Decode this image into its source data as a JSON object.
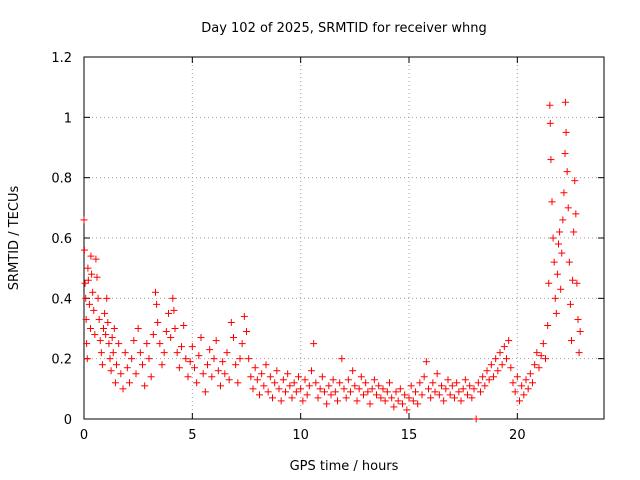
{
  "chart_data": {
    "type": "scatter",
    "title": "Day 102 of 2025, SRMTID for receiver whng",
    "xlabel": "GPS time / hours",
    "ylabel": "SRMTID / TECUs",
    "xlim": [
      0,
      24
    ],
    "ylim": [
      0,
      1.2
    ],
    "grid": true,
    "x_ticks": [
      0,
      5,
      10,
      15,
      20
    ],
    "x_tick_labels": [
      "0",
      "5",
      "10",
      "15",
      "20"
    ],
    "y_ticks": [
      0,
      0.2,
      0.4,
      0.6,
      0.8,
      1.0,
      1.2
    ],
    "y_tick_labels": [
      "0",
      "0.2",
      "0.4",
      "0.6",
      "0.8",
      "1",
      "1.2"
    ],
    "marker": "plus",
    "color": "#ff0000",
    "series": [
      {
        "name": "SRMTID",
        "points": [
          [
            0.0,
            0.66
          ],
          [
            0.02,
            0.56
          ],
          [
            0.05,
            0.45
          ],
          [
            0.08,
            0.4
          ],
          [
            0.1,
            0.33
          ],
          [
            0.12,
            0.25
          ],
          [
            0.15,
            0.2
          ],
          [
            0.18,
            0.5
          ],
          [
            0.2,
            0.46
          ],
          [
            0.25,
            0.38
          ],
          [
            0.3,
            0.3
          ],
          [
            0.32,
            0.54
          ],
          [
            0.35,
            0.48
          ],
          [
            0.4,
            0.42
          ],
          [
            0.45,
            0.36
          ],
          [
            0.5,
            0.28
          ],
          [
            0.55,
            0.53
          ],
          [
            0.6,
            0.47
          ],
          [
            0.65,
            0.4
          ],
          [
            0.7,
            0.33
          ],
          [
            0.75,
            0.26
          ],
          [
            0.8,
            0.22
          ],
          [
            0.85,
            0.18
          ],
          [
            0.9,
            0.3
          ],
          [
            0.95,
            0.35
          ],
          [
            1.0,
            0.28
          ],
          [
            1.05,
            0.4
          ],
          [
            1.1,
            0.32
          ],
          [
            1.15,
            0.25
          ],
          [
            1.2,
            0.2
          ],
          [
            1.25,
            0.16
          ],
          [
            1.3,
            0.27
          ],
          [
            1.35,
            0.22
          ],
          [
            1.4,
            0.3
          ],
          [
            1.45,
            0.12
          ],
          [
            1.5,
            0.18
          ],
          [
            1.6,
            0.25
          ],
          [
            1.7,
            0.15
          ],
          [
            1.8,
            0.1
          ],
          [
            1.9,
            0.22
          ],
          [
            2.0,
            0.17
          ],
          [
            2.1,
            0.12
          ],
          [
            2.2,
            0.2
          ],
          [
            2.3,
            0.26
          ],
          [
            2.4,
            0.15
          ],
          [
            2.5,
            0.3
          ],
          [
            2.6,
            0.22
          ],
          [
            2.7,
            0.18
          ],
          [
            2.8,
            0.11
          ],
          [
            2.9,
            0.25
          ],
          [
            3.0,
            0.2
          ],
          [
            3.1,
            0.14
          ],
          [
            3.2,
            0.28
          ],
          [
            3.3,
            0.42
          ],
          [
            3.35,
            0.38
          ],
          [
            3.4,
            0.32
          ],
          [
            3.5,
            0.25
          ],
          [
            3.6,
            0.18
          ],
          [
            3.7,
            0.22
          ],
          [
            3.8,
            0.29
          ],
          [
            3.9,
            0.35
          ],
          [
            4.0,
            0.27
          ],
          [
            4.1,
            0.4
          ],
          [
            4.15,
            0.36
          ],
          [
            4.2,
            0.3
          ],
          [
            4.3,
            0.22
          ],
          [
            4.4,
            0.17
          ],
          [
            4.5,
            0.24
          ],
          [
            4.6,
            0.31
          ],
          [
            4.7,
            0.2
          ],
          [
            4.8,
            0.14
          ],
          [
            4.9,
            0.19
          ],
          [
            5.0,
            0.24
          ],
          [
            5.1,
            0.17
          ],
          [
            5.2,
            0.12
          ],
          [
            5.3,
            0.21
          ],
          [
            5.4,
            0.27
          ],
          [
            5.5,
            0.15
          ],
          [
            5.6,
            0.09
          ],
          [
            5.7,
            0.18
          ],
          [
            5.8,
            0.23
          ],
          [
            5.9,
            0.14
          ],
          [
            6.0,
            0.2
          ],
          [
            6.1,
            0.26
          ],
          [
            6.2,
            0.16
          ],
          [
            6.3,
            0.11
          ],
          [
            6.4,
            0.19
          ],
          [
            6.5,
            0.15
          ],
          [
            6.6,
            0.22
          ],
          [
            6.7,
            0.13
          ],
          [
            6.8,
            0.32
          ],
          [
            6.9,
            0.27
          ],
          [
            7.0,
            0.18
          ],
          [
            7.1,
            0.12
          ],
          [
            7.2,
            0.2
          ],
          [
            7.3,
            0.25
          ],
          [
            7.4,
            0.34
          ],
          [
            7.5,
            0.29
          ],
          [
            7.6,
            0.2
          ],
          [
            7.7,
            0.14
          ],
          [
            7.8,
            0.1
          ],
          [
            7.9,
            0.17
          ],
          [
            8.0,
            0.13
          ],
          [
            8.1,
            0.08
          ],
          [
            8.2,
            0.15
          ],
          [
            8.3,
            0.11
          ],
          [
            8.4,
            0.18
          ],
          [
            8.5,
            0.09
          ],
          [
            8.6,
            0.14
          ],
          [
            8.7,
            0.07
          ],
          [
            8.8,
            0.12
          ],
          [
            8.9,
            0.16
          ],
          [
            9.0,
            0.1
          ],
          [
            9.1,
            0.06
          ],
          [
            9.2,
            0.13
          ],
          [
            9.3,
            0.09
          ],
          [
            9.4,
            0.15
          ],
          [
            9.5,
            0.11
          ],
          [
            9.6,
            0.07
          ],
          [
            9.7,
            0.12
          ],
          [
            9.8,
            0.09
          ],
          [
            9.9,
            0.14
          ],
          [
            10.0,
            0.1
          ],
          [
            10.1,
            0.06
          ],
          [
            10.2,
            0.13
          ],
          [
            10.3,
            0.08
          ],
          [
            10.4,
            0.11
          ],
          [
            10.5,
            0.16
          ],
          [
            10.6,
            0.25
          ],
          [
            10.7,
            0.12
          ],
          [
            10.8,
            0.07
          ],
          [
            10.9,
            0.1
          ],
          [
            11.0,
            0.14
          ],
          [
            11.1,
            0.09
          ],
          [
            11.2,
            0.05
          ],
          [
            11.3,
            0.11
          ],
          [
            11.4,
            0.08
          ],
          [
            11.5,
            0.13
          ],
          [
            11.6,
            0.09
          ],
          [
            11.7,
            0.06
          ],
          [
            11.8,
            0.12
          ],
          [
            11.9,
            0.2
          ],
          [
            12.0,
            0.1
          ],
          [
            12.1,
            0.07
          ],
          [
            12.2,
            0.13
          ],
          [
            12.3,
            0.09
          ],
          [
            12.4,
            0.16
          ],
          [
            12.5,
            0.11
          ],
          [
            12.6,
            0.06
          ],
          [
            12.7,
            0.1
          ],
          [
            12.8,
            0.14
          ],
          [
            12.9,
            0.08
          ],
          [
            13.0,
            0.12
          ],
          [
            13.1,
            0.09
          ],
          [
            13.2,
            0.05
          ],
          [
            13.3,
            0.1
          ],
          [
            13.4,
            0.13
          ],
          [
            13.5,
            0.08
          ],
          [
            13.6,
            0.11
          ],
          [
            13.7,
            0.07
          ],
          [
            13.8,
            0.1
          ],
          [
            13.9,
            0.06
          ],
          [
            14.0,
            0.09
          ],
          [
            14.1,
            0.12
          ],
          [
            14.2,
            0.07
          ],
          [
            14.3,
            0.04
          ],
          [
            14.4,
            0.09
          ],
          [
            14.5,
            0.06
          ],
          [
            14.6,
            0.1
          ],
          [
            14.7,
            0.05
          ],
          [
            14.8,
            0.08
          ],
          [
            14.9,
            0.03
          ],
          [
            15.0,
            0.07
          ],
          [
            15.1,
            0.11
          ],
          [
            15.2,
            0.06
          ],
          [
            15.3,
            0.09
          ],
          [
            15.4,
            0.05
          ],
          [
            15.5,
            0.12
          ],
          [
            15.6,
            0.08
          ],
          [
            15.7,
            0.14
          ],
          [
            15.8,
            0.19
          ],
          [
            15.9,
            0.1
          ],
          [
            16.0,
            0.07
          ],
          [
            16.1,
            0.12
          ],
          [
            16.2,
            0.09
          ],
          [
            16.3,
            0.15
          ],
          [
            16.4,
            0.08
          ],
          [
            16.5,
            0.11
          ],
          [
            16.6,
            0.06
          ],
          [
            16.7,
            0.1
          ],
          [
            16.8,
            0.13
          ],
          [
            16.9,
            0.08
          ],
          [
            17.0,
            0.11
          ],
          [
            17.1,
            0.07
          ],
          [
            17.2,
            0.12
          ],
          [
            17.3,
            0.09
          ],
          [
            17.4,
            0.06
          ],
          [
            17.5,
            0.1
          ],
          [
            17.6,
            0.13
          ],
          [
            17.7,
            0.08
          ],
          [
            17.8,
            0.11
          ],
          [
            17.9,
            0.07
          ],
          [
            18.0,
            0.1
          ],
          [
            18.1,
            0.0
          ],
          [
            18.2,
            0.12
          ],
          [
            18.3,
            0.09
          ],
          [
            18.4,
            0.14
          ],
          [
            18.5,
            0.11
          ],
          [
            18.6,
            0.16
          ],
          [
            18.7,
            0.13
          ],
          [
            18.8,
            0.18
          ],
          [
            18.9,
            0.14
          ],
          [
            19.0,
            0.2
          ],
          [
            19.1,
            0.16
          ],
          [
            19.2,
            0.22
          ],
          [
            19.3,
            0.18
          ],
          [
            19.4,
            0.24
          ],
          [
            19.5,
            0.2
          ],
          [
            19.6,
            0.26
          ],
          [
            19.7,
            0.17
          ],
          [
            19.8,
            0.12
          ],
          [
            19.9,
            0.09
          ],
          [
            20.0,
            0.14
          ],
          [
            20.1,
            0.06
          ],
          [
            20.2,
            0.11
          ],
          [
            20.3,
            0.08
          ],
          [
            20.4,
            0.13
          ],
          [
            20.5,
            0.1
          ],
          [
            20.6,
            0.15
          ],
          [
            20.7,
            0.12
          ],
          [
            20.8,
            0.18
          ],
          [
            20.9,
            0.22
          ],
          [
            21.0,
            0.17
          ],
          [
            21.1,
            0.21
          ],
          [
            21.2,
            0.25
          ],
          [
            21.3,
            0.2
          ],
          [
            21.4,
            0.31
          ],
          [
            21.45,
            0.45
          ],
          [
            21.5,
            1.04
          ],
          [
            21.52,
            0.98
          ],
          [
            21.55,
            0.86
          ],
          [
            21.6,
            0.72
          ],
          [
            21.65,
            0.6
          ],
          [
            21.7,
            0.52
          ],
          [
            21.75,
            0.4
          ],
          [
            21.8,
            0.35
          ],
          [
            21.85,
            0.48
          ],
          [
            21.9,
            0.58
          ],
          [
            21.95,
            0.62
          ],
          [
            22.0,
            0.43
          ],
          [
            22.05,
            0.55
          ],
          [
            22.1,
            0.66
          ],
          [
            22.15,
            0.75
          ],
          [
            22.2,
            0.88
          ],
          [
            22.22,
            1.05
          ],
          [
            22.25,
            0.95
          ],
          [
            22.3,
            0.82
          ],
          [
            22.35,
            0.7
          ],
          [
            22.4,
            0.52
          ],
          [
            22.45,
            0.38
          ],
          [
            22.5,
            0.26
          ],
          [
            22.55,
            0.46
          ],
          [
            22.6,
            0.62
          ],
          [
            22.65,
            0.79
          ],
          [
            22.7,
            0.68
          ],
          [
            22.75,
            0.45
          ],
          [
            22.8,
            0.33
          ],
          [
            22.85,
            0.22
          ],
          [
            22.9,
            0.29
          ]
        ]
      }
    ]
  }
}
